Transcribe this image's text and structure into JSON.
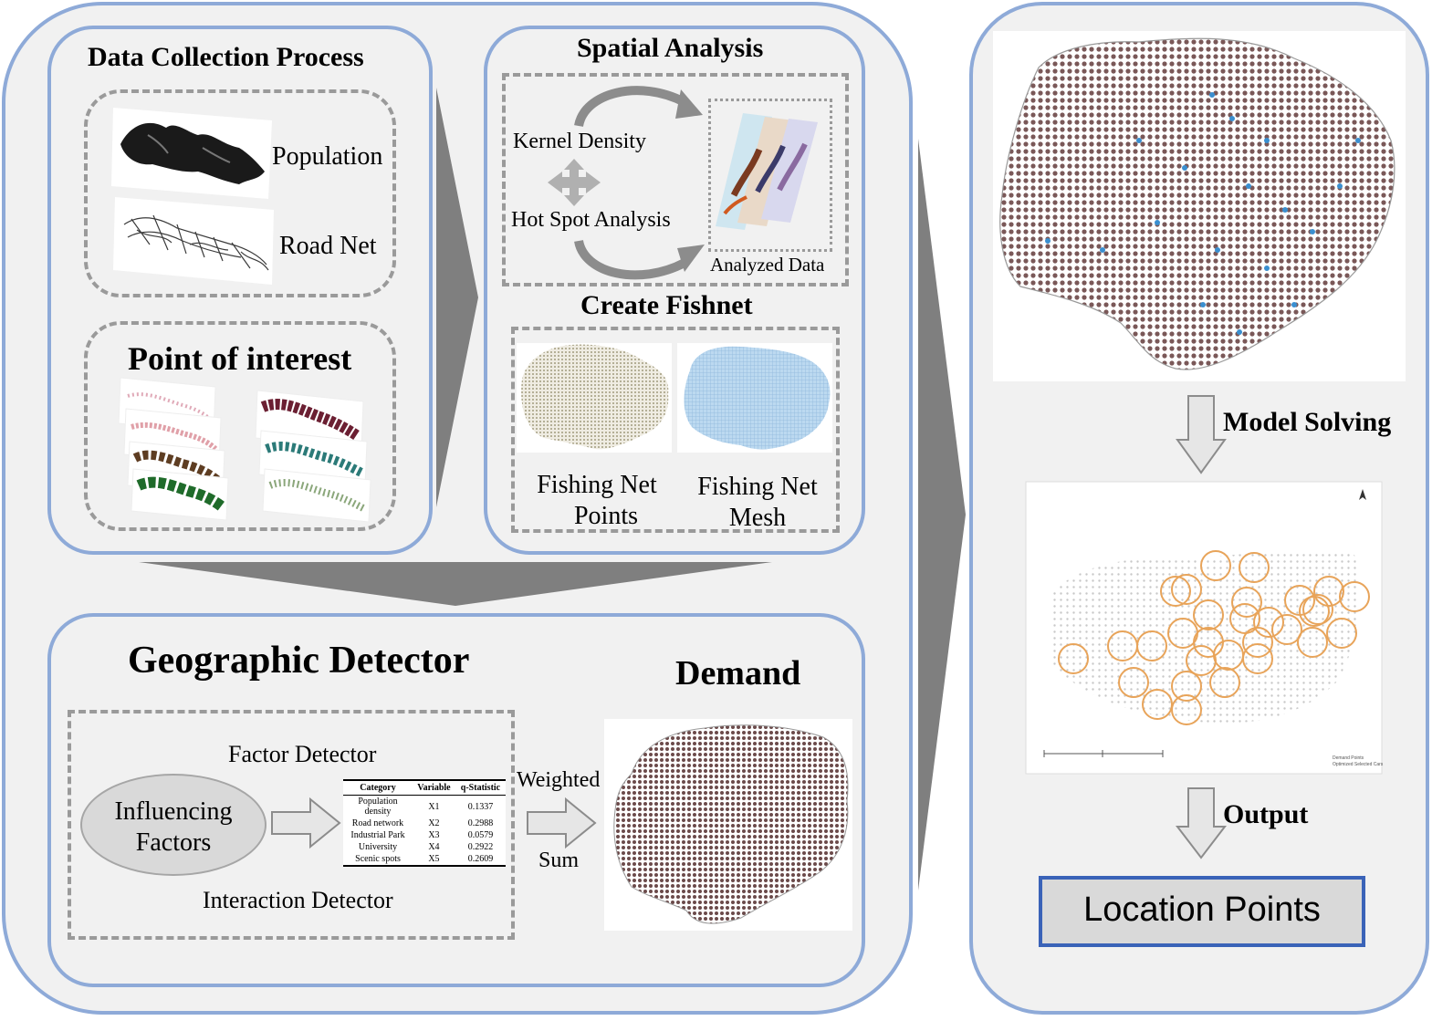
{
  "data_collection": {
    "title": "Data Collection Process",
    "population_label": "Population",
    "road_net_label": "Road Net",
    "poi_title": "Point of interest"
  },
  "spatial_analysis": {
    "title": "Spatial Analysis",
    "kernel_density_label": "Kernel Density",
    "hot_spot_label": "Hot Spot Analysis",
    "analyzed_data_label": "Analyzed Data"
  },
  "fishnet": {
    "title": "Create Fishnet",
    "points_label_line1": "Fishing Net",
    "points_label_line2": "Points",
    "mesh_label_line1": "Fishing Net",
    "mesh_label_line2": "Mesh"
  },
  "geo_detector": {
    "title": "Geographic Detector",
    "factor_detector_label": "Factor Detector",
    "interaction_detector_label": "Interaction Detector",
    "influencing_line1": "Influencing",
    "influencing_line2": "Factors",
    "weighted_label": "Weighted",
    "sum_label": "Sum",
    "demand_title": "Demand",
    "table": {
      "headers": [
        "Category",
        "Variable",
        "q-Statistic"
      ],
      "rows": [
        [
          "Population density",
          "X1",
          "0.1337"
        ],
        [
          "Road network",
          "X2",
          "0.2988"
        ],
        [
          "Industrial Park",
          "X3",
          "0.0579"
        ],
        [
          "University",
          "X4",
          "0.2922"
        ],
        [
          "Scenic spots",
          "X5",
          "0.2609"
        ]
      ]
    }
  },
  "right_column": {
    "model_solving_label": "Model Solving",
    "output_label": "Output",
    "location_points_label": "Location Points",
    "map_legend_1": "Demand Points",
    "map_legend_2": "Optimized Selected Cars"
  },
  "colors": {
    "panel_border": "#8eaad8",
    "panel_fill": "#f1f1f1",
    "arrow_dark": "#7f7f7f",
    "circle_orange": "#e8a45a",
    "location_box_border": "#3a63b8"
  }
}
